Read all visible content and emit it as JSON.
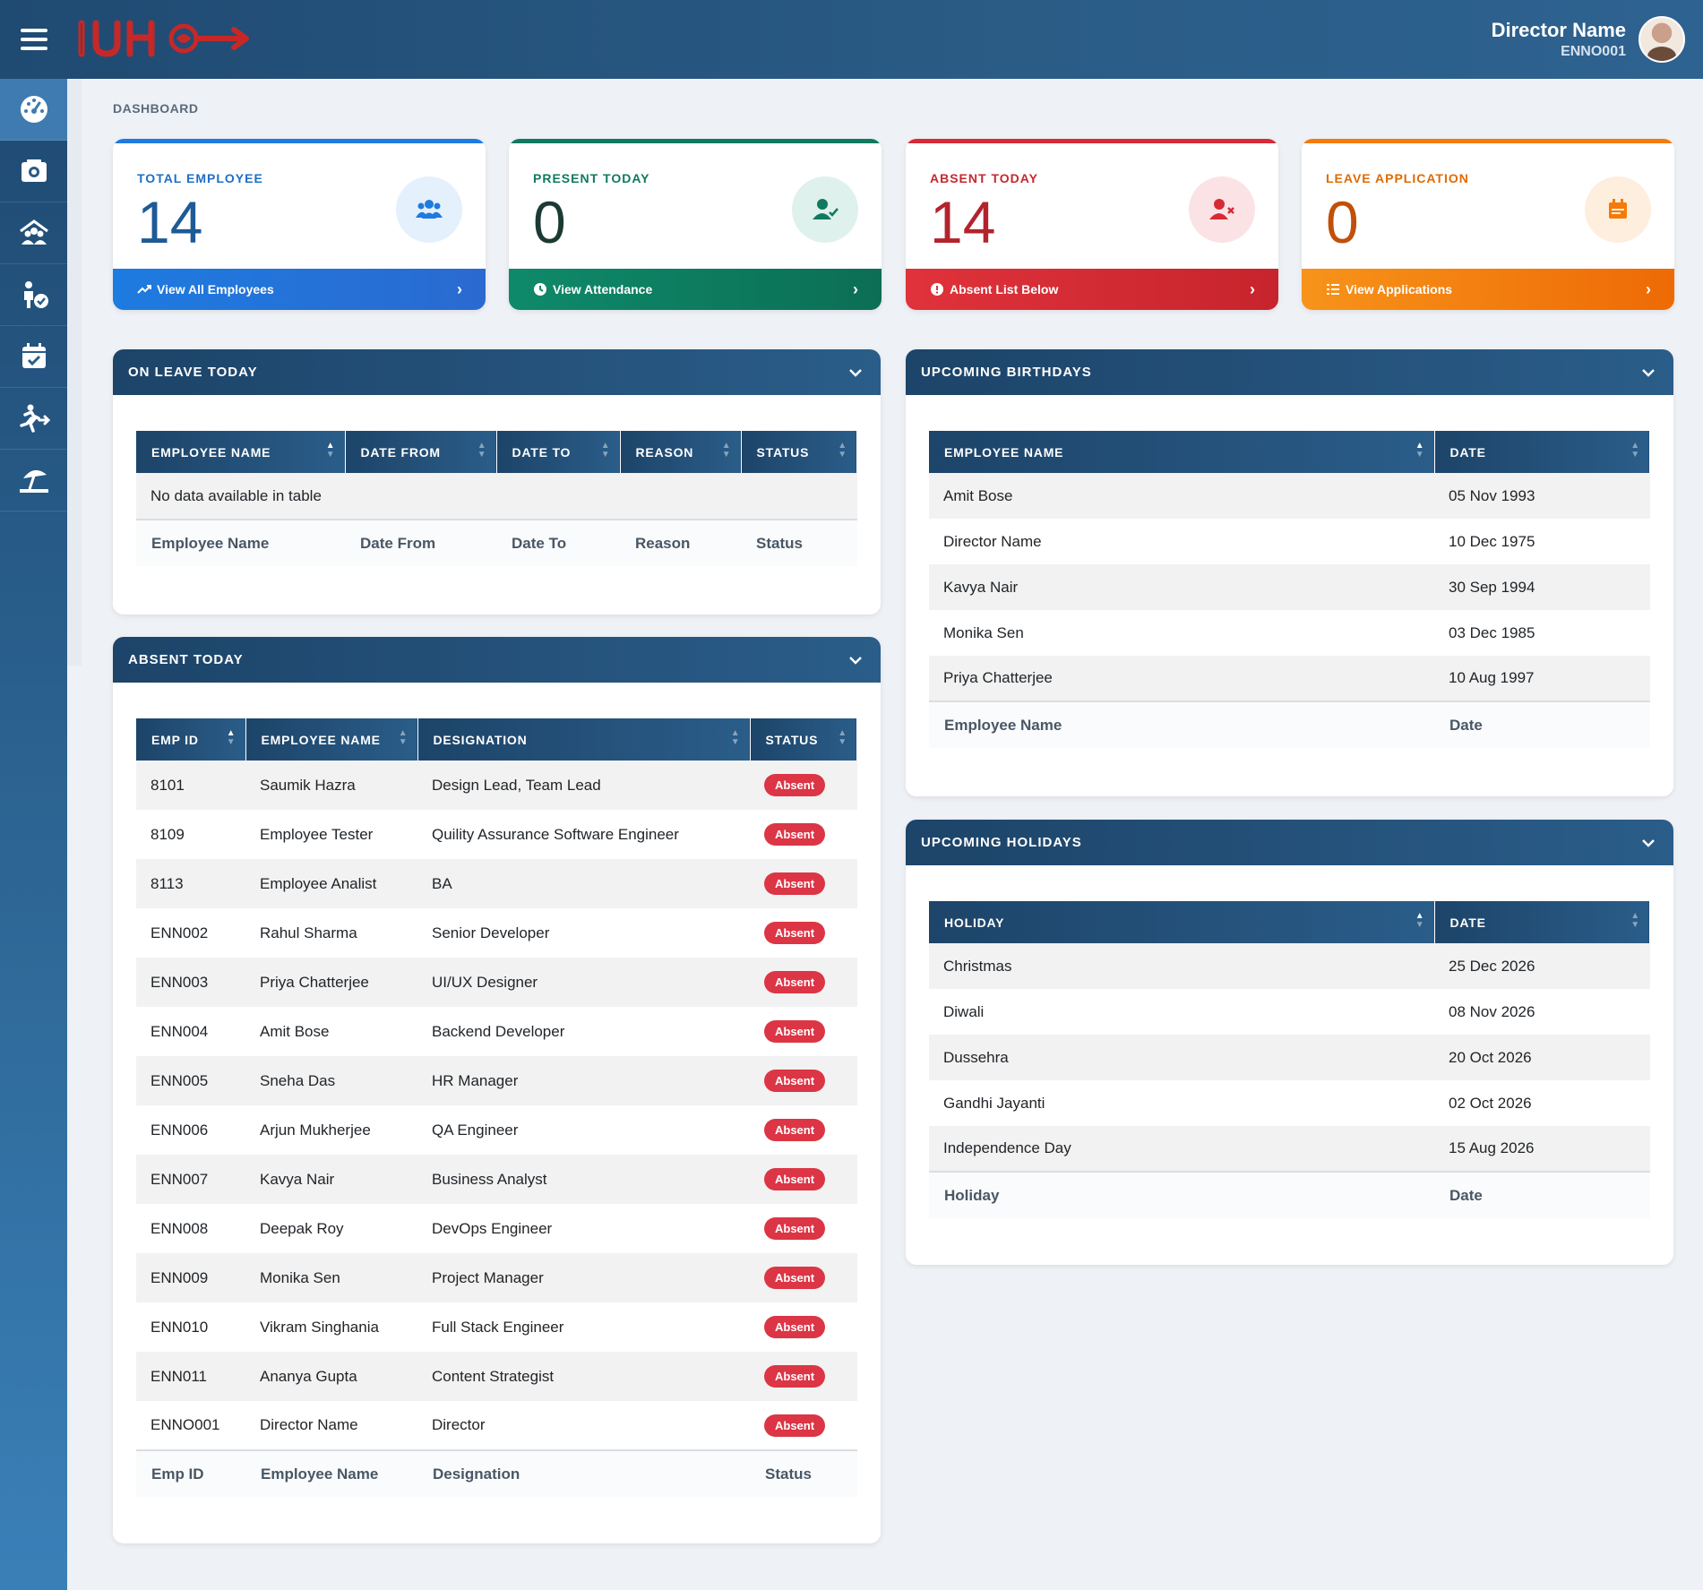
{
  "header": {
    "user_name": "Director Name",
    "user_id": "ENNO001"
  },
  "breadcrumb": "DASHBOARD",
  "sidebar": {
    "items": [
      {
        "icon": "dashboard-gauge-icon",
        "active": true
      },
      {
        "icon": "camera-icon"
      },
      {
        "icon": "team-icon"
      },
      {
        "icon": "user-check-icon"
      },
      {
        "icon": "calendar-check-icon"
      },
      {
        "icon": "exit-run-icon"
      },
      {
        "icon": "beach-umbrella-icon"
      }
    ]
  },
  "stats": [
    {
      "label": "TOTAL EMPLOYEE",
      "value": "14",
      "footer": "View All Employees",
      "color": "#1e7be0",
      "icon": "users-icon"
    },
    {
      "label": "PRESENT TODAY",
      "value": "0",
      "footer": "View Attendance",
      "color": "#0f7a5f",
      "icon": "user-check-icon"
    },
    {
      "label": "ABSENT TODAY",
      "value": "14",
      "footer": "Absent List Below",
      "color": "#d62b35",
      "icon": "user-times-icon"
    },
    {
      "label": "LEAVE APPLICATION",
      "value": "0",
      "footer": "View Applications",
      "color": "#f47b0a",
      "icon": "calendar-icon"
    }
  ],
  "on_leave": {
    "title": "ON LEAVE TODAY",
    "columns": [
      "EMPLOYEE NAME",
      "DATE FROM",
      "DATE TO",
      "REASON",
      "STATUS"
    ],
    "empty": "No data available in table",
    "footer": [
      "Employee Name",
      "Date From",
      "Date To",
      "Reason",
      "Status"
    ]
  },
  "absent": {
    "title": "ABSENT TODAY",
    "columns": [
      "EMP ID",
      "EMPLOYEE NAME",
      "DESIGNATION",
      "STATUS"
    ],
    "rows": [
      [
        "8101",
        "Saumik Hazra",
        "Design Lead, Team Lead",
        "Absent"
      ],
      [
        "8109",
        "Employee Tester",
        "Quility Assurance Software Engineer",
        "Absent"
      ],
      [
        "8113",
        "Employee Analist",
        "BA",
        "Absent"
      ],
      [
        "ENN002",
        "Rahul Sharma",
        "Senior Developer",
        "Absent"
      ],
      [
        "ENN003",
        "Priya Chatterjee",
        "UI/UX Designer",
        "Absent"
      ],
      [
        "ENN004",
        "Amit Bose",
        "Backend Developer",
        "Absent"
      ],
      [
        "ENN005",
        "Sneha Das",
        "HR Manager",
        "Absent"
      ],
      [
        "ENN006",
        "Arjun Mukherjee",
        "QA Engineer",
        "Absent"
      ],
      [
        "ENN007",
        "Kavya Nair",
        "Business Analyst",
        "Absent"
      ],
      [
        "ENN008",
        "Deepak Roy",
        "DevOps Engineer",
        "Absent"
      ],
      [
        "ENN009",
        "Monika Sen",
        "Project Manager",
        "Absent"
      ],
      [
        "ENN010",
        "Vikram Singhania",
        "Full Stack Engineer",
        "Absent"
      ],
      [
        "ENN011",
        "Ananya Gupta",
        "Content Strategist",
        "Absent"
      ],
      [
        "ENNO001",
        "Director Name",
        "Director",
        "Absent"
      ]
    ],
    "footer": [
      "Emp ID",
      "Employee Name",
      "Designation",
      "Status"
    ]
  },
  "birthdays": {
    "title": "UPCOMING BIRTHDAYS",
    "columns": [
      "EMPLOYEE NAME",
      "DATE"
    ],
    "rows": [
      [
        "Amit Bose",
        "05 Nov 1993"
      ],
      [
        "Director Name",
        "10 Dec 1975"
      ],
      [
        "Kavya Nair",
        "30 Sep 1994"
      ],
      [
        "Monika Sen",
        "03 Dec 1985"
      ],
      [
        "Priya Chatterjee",
        "10 Aug 1997"
      ]
    ],
    "footer": [
      "Employee Name",
      "Date"
    ]
  },
  "holidays": {
    "title": "UPCOMING HOLIDAYS",
    "columns": [
      "HOLIDAY",
      "DATE"
    ],
    "rows": [
      [
        "Christmas",
        "25 Dec 2026"
      ],
      [
        "Diwali",
        "08 Nov 2026"
      ],
      [
        "Dussehra",
        "20 Oct 2026"
      ],
      [
        "Gandhi Jayanti",
        "02 Oct 2026"
      ],
      [
        "Independence Day",
        "15 Aug 2026"
      ]
    ],
    "footer": [
      "Holiday",
      "Date"
    ]
  }
}
